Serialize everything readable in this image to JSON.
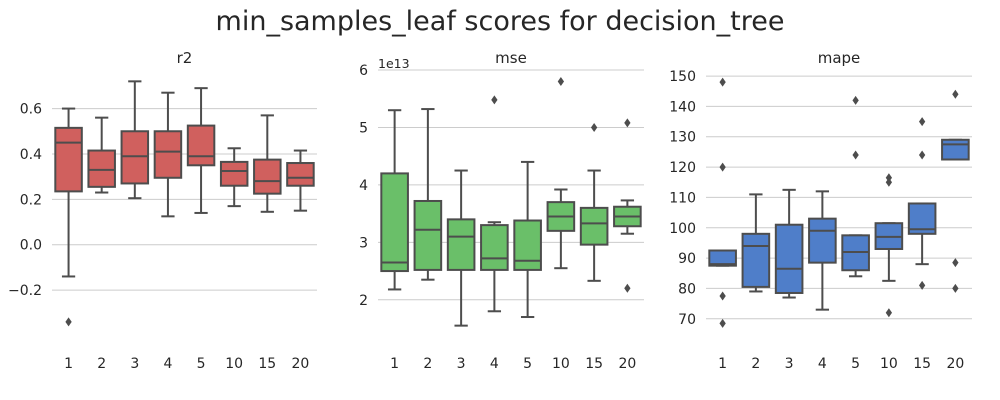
{
  "title": "min_samples_leaf scores for decision_tree",
  "chart_data": [
    {
      "type": "box",
      "title": "r2",
      "xlabel": "",
      "ylabel": "",
      "categories": [
        "1",
        "2",
        "3",
        "4",
        "5",
        "10",
        "15",
        "20"
      ],
      "ylim": [
        -0.42,
        0.77
      ],
      "yticks": [
        -0.2,
        0.0,
        0.2,
        0.4,
        0.6
      ],
      "ytick_labels": [
        "−0.2",
        "0.0",
        "0.2",
        "0.4",
        "0.6"
      ],
      "y_offset_label": "",
      "color": "#d0605e",
      "grid": true,
      "boxes": [
        {
          "whislo": -0.14,
          "q1": 0.235,
          "med": 0.45,
          "q3": 0.515,
          "whishi": 0.6,
          "fliers": [
            -0.34
          ]
        },
        {
          "whislo": 0.23,
          "q1": 0.255,
          "med": 0.33,
          "q3": 0.415,
          "whishi": 0.56,
          "fliers": []
        },
        {
          "whislo": 0.205,
          "q1": 0.27,
          "med": 0.39,
          "q3": 0.5,
          "whishi": 0.72,
          "fliers": []
        },
        {
          "whislo": 0.125,
          "q1": 0.295,
          "med": 0.41,
          "q3": 0.5,
          "whishi": 0.67,
          "fliers": []
        },
        {
          "whislo": 0.14,
          "q1": 0.35,
          "med": 0.39,
          "q3": 0.525,
          "whishi": 0.69,
          "fliers": []
        },
        {
          "whislo": 0.17,
          "q1": 0.26,
          "med": 0.325,
          "q3": 0.365,
          "whishi": 0.425,
          "fliers": []
        },
        {
          "whislo": 0.145,
          "q1": 0.225,
          "med": 0.28,
          "q3": 0.375,
          "whishi": 0.57,
          "fliers": []
        },
        {
          "whislo": 0.15,
          "q1": 0.26,
          "med": 0.295,
          "q3": 0.36,
          "whishi": 0.415,
          "fliers": []
        }
      ]
    },
    {
      "type": "box",
      "title": "mse",
      "xlabel": "",
      "ylabel": "",
      "categories": [
        "1",
        "2",
        "3",
        "4",
        "5",
        "10",
        "15",
        "20"
      ],
      "ylim": [
        1.3,
        6.0
      ],
      "yticks": [
        2,
        3,
        4,
        5,
        6
      ],
      "ytick_labels": [
        "2",
        "3",
        "4",
        "5",
        "6"
      ],
      "y_offset_label": "1e13",
      "color": "#6abf69",
      "grid": true,
      "boxes": [
        {
          "whislo": 2.18,
          "q1": 2.5,
          "med": 2.65,
          "q3": 4.2,
          "whishi": 5.3,
          "fliers": []
        },
        {
          "whislo": 2.35,
          "q1": 2.52,
          "med": 3.22,
          "q3": 3.72,
          "whishi": 5.32,
          "fliers": []
        },
        {
          "whislo": 1.55,
          "q1": 2.52,
          "med": 3.1,
          "q3": 3.4,
          "whishi": 4.25,
          "fliers": []
        },
        {
          "whislo": 1.8,
          "q1": 2.52,
          "med": 2.72,
          "q3": 3.3,
          "whishi": 3.35,
          "fliers": [
            5.48
          ]
        },
        {
          "whislo": 1.7,
          "q1": 2.52,
          "med": 2.68,
          "q3": 3.38,
          "whishi": 4.4,
          "fliers": []
        },
        {
          "whislo": 2.55,
          "q1": 3.2,
          "med": 3.45,
          "q3": 3.7,
          "whishi": 3.92,
          "fliers": [
            5.8
          ]
        },
        {
          "whislo": 2.33,
          "q1": 2.96,
          "med": 3.33,
          "q3": 3.6,
          "whishi": 4.25,
          "fliers": [
            5.0
          ]
        },
        {
          "whislo": 3.15,
          "q1": 3.28,
          "med": 3.45,
          "q3": 3.62,
          "whishi": 3.73,
          "fliers": [
            5.08,
            2.2
          ]
        }
      ]
    },
    {
      "type": "box",
      "title": "mape",
      "xlabel": "",
      "ylabel": "",
      "categories": [
        "1",
        "2",
        "3",
        "4",
        "5",
        "10",
        "15",
        "20"
      ],
      "ylim": [
        63,
        152
      ],
      "yticks": [
        70,
        80,
        90,
        100,
        110,
        120,
        130,
        140,
        150
      ],
      "ytick_labels": [
        "70",
        "80",
        "90",
        "100",
        "110",
        "120",
        "130",
        "140",
        "150"
      ],
      "y_offset_label": "",
      "color": "#4f7ec9",
      "grid": true,
      "boxes": [
        {
          "whislo": 87.5,
          "q1": 87.5,
          "med": 88.0,
          "q3": 92.5,
          "whishi": 92.5,
          "fliers": [
            148,
            120,
            77.5,
            68.5
          ]
        },
        {
          "whislo": 79,
          "q1": 80.5,
          "med": 94.0,
          "q3": 98.0,
          "whishi": 111.0,
          "fliers": []
        },
        {
          "whislo": 77,
          "q1": 78.5,
          "med": 86.5,
          "q3": 101.0,
          "whishi": 112.5,
          "fliers": []
        },
        {
          "whislo": 73,
          "q1": 88.5,
          "med": 99.0,
          "q3": 103.0,
          "whishi": 112.0,
          "fliers": []
        },
        {
          "whislo": 84,
          "q1": 86.0,
          "med": 92.0,
          "q3": 97.5,
          "whishi": 97.5,
          "fliers": [
            142,
            124
          ]
        },
        {
          "whislo": 82.5,
          "q1": 93.0,
          "med": 97.0,
          "q3": 101.5,
          "whishi": 101.5,
          "fliers": [
            116.5,
            115,
            72
          ]
        },
        {
          "whislo": 88,
          "q1": 98.0,
          "med": 99.5,
          "q3": 108.0,
          "whishi": 108.0,
          "fliers": [
            135,
            124,
            81
          ]
        },
        {
          "whislo": 122.5,
          "q1": 122.5,
          "med": 127.5,
          "q3": 129.0,
          "whishi": 129.0,
          "fliers": [
            144,
            88.5,
            80
          ]
        }
      ]
    }
  ]
}
